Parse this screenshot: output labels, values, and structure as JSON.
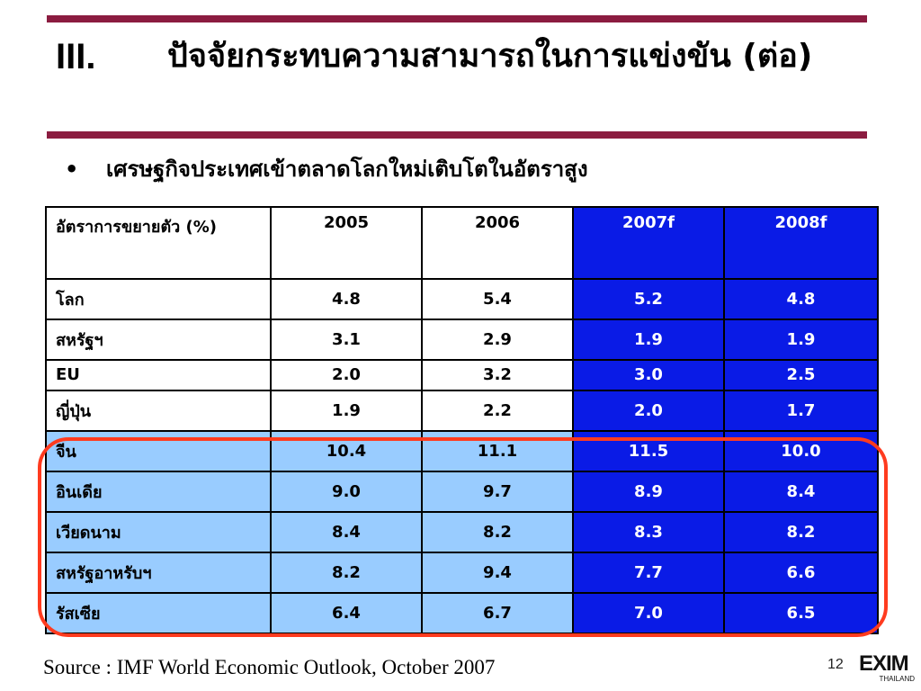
{
  "slide": {
    "title_number": "III.",
    "title_text": "ปัจจัยกระทบความสามารถในการแข่งขัน (ต่อ)",
    "bullet": "•",
    "bullet_text": "เศรษฐกิจประเทศเข้าตลาดโลกใหม่เติบโตในอัตราสูง",
    "source": "Source : IMF World Economic Outlook, October 2007",
    "page_number": "12",
    "logo_text": "EXIM",
    "logo_subtext": "THAILAND"
  },
  "table": {
    "header": [
      "อัตราการขยายตัว (%)",
      "2005",
      "2006",
      "2007f",
      "2008f"
    ],
    "rows": [
      {
        "label": "โลก",
        "values": [
          "4.8",
          "5.4",
          "5.2",
          "4.8"
        ],
        "highlight": false
      },
      {
        "label": "สหรัฐฯ",
        "values": [
          "3.1",
          "2.9",
          "1.9",
          "1.9"
        ],
        "highlight": false
      },
      {
        "label": "EU",
        "values": [
          "2.0",
          "3.2",
          "3.0",
          "2.5"
        ],
        "highlight": false
      },
      {
        "label": "ญี่ปุ่น",
        "values": [
          "1.9",
          "2.2",
          "2.0",
          "1.7"
        ],
        "highlight": false
      },
      {
        "label": "จีน",
        "values": [
          "10.4",
          "11.1",
          "11.5",
          "10.0"
        ],
        "highlight": true
      },
      {
        "label": "อินเดีย",
        "values": [
          "9.0",
          "9.7",
          "8.9",
          "8.4"
        ],
        "highlight": true
      },
      {
        "label": "เวียดนาม",
        "values": [
          "8.4",
          "8.2",
          "8.3",
          "8.2"
        ],
        "highlight": true
      },
      {
        "label": "สหรัฐอาหรับฯ",
        "values": [
          "8.2",
          "9.4",
          "7.7",
          "6.6"
        ],
        "highlight": true
      },
      {
        "label": "รัสเซีย",
        "values": [
          "6.4",
          "6.7",
          "7.0",
          "6.5"
        ],
        "highlight": true
      }
    ]
  },
  "colors": {
    "rule": "#8b1c40",
    "forecast_bg": "#0a1be6",
    "highlight_bg": "#99ccff",
    "circle": "#ff3b1f"
  }
}
